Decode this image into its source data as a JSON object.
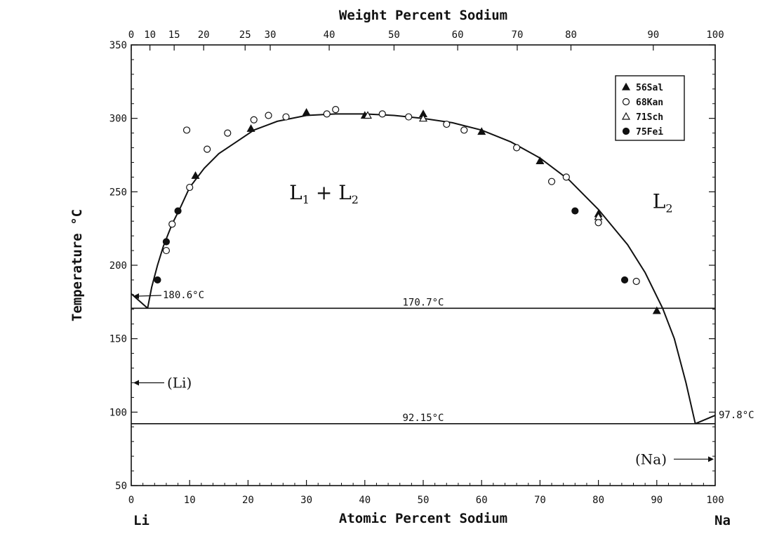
{
  "chart_data": {
    "type": "scatter",
    "x_axis": {
      "label": "Atomic Percent Sodium",
      "range": [
        0,
        100
      ],
      "ticks": [
        0,
        10,
        20,
        30,
        40,
        50,
        60,
        70,
        80,
        90,
        100
      ],
      "left_end_label": "Li",
      "right_end_label": "Na"
    },
    "top_axis": {
      "label": "Weight Percent Sodium",
      "ticks": [
        {
          "label": "0",
          "at": 0
        },
        {
          "label": "10",
          "at": 3.2
        },
        {
          "label": "15",
          "at": 7.35
        },
        {
          "label": "20",
          "at": 12.4
        },
        {
          "label": "25",
          "at": 19.5
        },
        {
          "label": "30",
          "at": 23.8
        },
        {
          "label": "40",
          "at": 33.9
        },
        {
          "label": "50",
          "at": 45.0
        },
        {
          "label": "60",
          "at": 55.9
        },
        {
          "label": "70",
          "at": 66.1
        },
        {
          "label": "80",
          "at": 75.3
        },
        {
          "label": "90",
          "at": 89.4
        },
        {
          "label": "100",
          "at": 100
        }
      ]
    },
    "y_axis": {
      "label": "Temperature °C",
      "range": [
        50,
        350
      ],
      "ticks": [
        50,
        100,
        150,
        200,
        250,
        300,
        350
      ]
    },
    "legend": {
      "placement": "top-right",
      "entries": [
        {
          "label": "56Sal",
          "marker": "filled-triangle"
        },
        {
          "label": "68Kan",
          "marker": "open-circle"
        },
        {
          "label": "71Sch",
          "marker": "open-triangle"
        },
        {
          "label": "75Fei",
          "marker": "filled-circle"
        }
      ]
    },
    "region_labels": [
      {
        "main": "L",
        "sub": "1",
        "mid": " + ",
        "main2": "L",
        "sub2": "2",
        "x": 33,
        "y": 245
      },
      {
        "main": "L",
        "sub": "2",
        "x": 91,
        "y": 239
      }
    ],
    "annotations": [
      {
        "text": "180.6°C",
        "x": 0,
        "y": 180.6
      },
      {
        "text": "170.7°C",
        "x": 50,
        "y": 170.7
      },
      {
        "text": "92.15°C",
        "x": 50,
        "y": 92.15
      },
      {
        "text": "97.8°C",
        "x": 100,
        "y": 97.8
      },
      {
        "text": "(Li)",
        "x": 0,
        "y": 120
      },
      {
        "text": "(Na)",
        "x": 100,
        "y": 68
      }
    ],
    "isotherms": [
      {
        "y": 170.7,
        "x_range": [
          0,
          100
        ]
      },
      {
        "y": 92.15,
        "x_range": [
          0,
          100
        ]
      }
    ],
    "miscibility_curve": [
      [
        2.8,
        170.7
      ],
      [
        3.5,
        185
      ],
      [
        4.5,
        200
      ],
      [
        5.5,
        213
      ],
      [
        7,
        228
      ],
      [
        8.5,
        240
      ],
      [
        10,
        253
      ],
      [
        12.5,
        266
      ],
      [
        15,
        276
      ],
      [
        18,
        284
      ],
      [
        21,
        292
      ],
      [
        25,
        298
      ],
      [
        30,
        302
      ],
      [
        35,
        303
      ],
      [
        40,
        303
      ],
      [
        45,
        302
      ],
      [
        50,
        300
      ],
      [
        55,
        297
      ],
      [
        60,
        292
      ],
      [
        65,
        284
      ],
      [
        70,
        273
      ],
      [
        75,
        258
      ],
      [
        80,
        238
      ],
      [
        85,
        214
      ],
      [
        88,
        195
      ],
      [
        91,
        170.7
      ],
      [
        93,
        150
      ],
      [
        95,
        120
      ],
      [
        96.6,
        92.15
      ]
    ],
    "liquidus_left": [
      [
        0,
        180.6
      ],
      [
        2.8,
        170.7
      ]
    ],
    "liquidus_right": [
      [
        96.6,
        92.15
      ],
      [
        100,
        97.8
      ]
    ],
    "series": [
      {
        "name": "56Sal",
        "marker": "filled-triangle",
        "points": [
          [
            11,
            261
          ],
          [
            20.5,
            293
          ],
          [
            30,
            304
          ],
          [
            40,
            302
          ],
          [
            50,
            303
          ],
          [
            60,
            291
          ],
          [
            70,
            271
          ],
          [
            80,
            235
          ],
          [
            90,
            169
          ]
        ]
      },
      {
        "name": "68Kan",
        "marker": "open-circle",
        "points": [
          [
            9.5,
            292
          ],
          [
            13,
            279
          ],
          [
            16.5,
            290
          ],
          [
            21,
            299
          ],
          [
            23.5,
            302
          ],
          [
            26.5,
            301
          ],
          [
            33.5,
            303
          ],
          [
            35,
            306
          ],
          [
            43,
            303
          ],
          [
            47.5,
            301
          ],
          [
            54,
            296
          ],
          [
            57,
            292
          ],
          [
            66,
            280
          ],
          [
            72,
            257
          ],
          [
            74.5,
            260
          ],
          [
            80,
            229
          ],
          [
            86.5,
            189
          ],
          [
            7,
            228
          ],
          [
            6,
            210
          ],
          [
            10,
            253
          ]
        ]
      },
      {
        "name": "71Sch",
        "marker": "open-triangle",
        "points": [
          [
            40.5,
            302
          ],
          [
            50,
            300
          ],
          [
            80,
            233
          ]
        ]
      },
      {
        "name": "75Fei",
        "marker": "filled-circle",
        "points": [
          [
            4.5,
            190
          ],
          [
            8,
            237
          ],
          [
            76,
            237
          ],
          [
            84.5,
            190
          ],
          [
            6,
            216
          ]
        ]
      }
    ]
  }
}
